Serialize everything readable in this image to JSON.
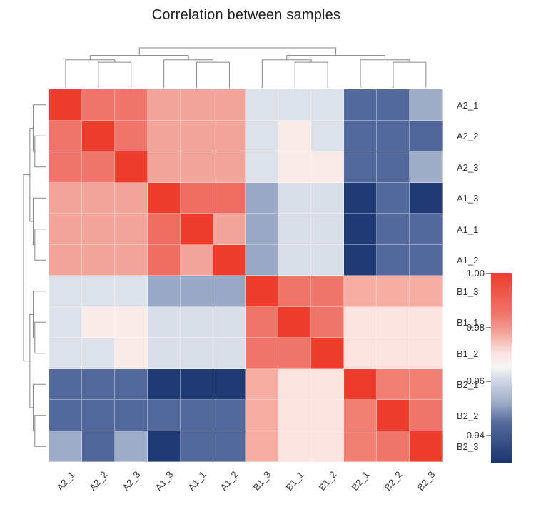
{
  "chart_data": {
    "type": "heatmap",
    "title": "Correlation between samples",
    "row_labels": [
      "A2_1",
      "A2_2",
      "A2_3",
      "A1_3",
      "A1_1",
      "A1_2",
      "B1_3",
      "B1_1",
      "B1_2",
      "B2_1",
      "B2_2",
      "B2_3"
    ],
    "col_labels": [
      "A2_1",
      "A2_2",
      "A2_3",
      "A1_3",
      "A1_1",
      "A1_2",
      "B1_3",
      "B1_1",
      "B1_2",
      "B2_1",
      "B2_2",
      "B2_3"
    ],
    "matrix": [
      [
        1.0,
        0.985,
        0.985,
        0.978,
        0.978,
        0.978,
        0.962,
        0.962,
        0.962,
        0.9445,
        0.9445,
        0.9525
      ],
      [
        0.985,
        1.0,
        0.985,
        0.978,
        0.978,
        0.978,
        0.962,
        0.9685,
        0.962,
        0.9445,
        0.9445,
        0.9435
      ],
      [
        0.985,
        0.985,
        1.0,
        0.978,
        0.978,
        0.978,
        0.962,
        0.9685,
        0.9685,
        0.9445,
        0.9445,
        0.9525
      ],
      [
        0.978,
        0.978,
        0.978,
        1.0,
        0.987,
        0.987,
        0.952,
        0.9615,
        0.9615,
        0.9315,
        0.9445,
        0.9315
      ],
      [
        0.978,
        0.978,
        0.978,
        0.987,
        1.0,
        0.978,
        0.952,
        0.9615,
        0.9615,
        0.9315,
        0.9445,
        0.9445
      ],
      [
        0.978,
        0.978,
        0.978,
        0.987,
        0.978,
        1.0,
        0.952,
        0.9615,
        0.9615,
        0.9315,
        0.9445,
        0.9445
      ],
      [
        0.962,
        0.962,
        0.962,
        0.952,
        0.952,
        0.952,
        1.0,
        0.985,
        0.985,
        0.977,
        0.977,
        0.977
      ],
      [
        0.962,
        0.9685,
        0.9685,
        0.9615,
        0.9615,
        0.9615,
        0.985,
        1.0,
        0.985,
        0.9705,
        0.9705,
        0.9705
      ],
      [
        0.962,
        0.962,
        0.9685,
        0.9615,
        0.9615,
        0.9615,
        0.985,
        0.985,
        1.0,
        0.9705,
        0.9705,
        0.9705
      ],
      [
        0.9445,
        0.9445,
        0.9445,
        0.9315,
        0.9315,
        0.9315,
        0.977,
        0.9705,
        0.9705,
        1.0,
        0.9835,
        0.9835
      ],
      [
        0.9445,
        0.9445,
        0.9445,
        0.9445,
        0.9445,
        0.9445,
        0.977,
        0.9705,
        0.9705,
        0.9835,
        1.0,
        0.985
      ],
      [
        0.9525,
        0.9435,
        0.9525,
        0.9315,
        0.9445,
        0.9445,
        0.977,
        0.9705,
        0.9705,
        0.9835,
        0.985,
        1.0
      ]
    ],
    "colorbar": {
      "tick_labels": [
        "1.00",
        "0.98",
        "0.96",
        "0.94"
      ],
      "tick_values": [
        1.0,
        0.98,
        0.96,
        0.94
      ],
      "domain": [
        0.93,
        1.0
      ],
      "orientation": "vertical",
      "position": "right"
    },
    "colormap_stops": [
      [
        0.93,
        "#1a356f"
      ],
      [
        0.9445,
        "#54699b"
      ],
      [
        0.9525,
        "#9fadc8"
      ],
      [
        0.962,
        "#dce1ea"
      ],
      [
        0.9655,
        "#f8f6f4"
      ],
      [
        0.9705,
        "#fbe3e0"
      ],
      [
        0.978,
        "#f4a59b"
      ],
      [
        0.985,
        "#f0756a"
      ],
      [
        1.0,
        "#ee3c2d"
      ]
    ],
    "dendrogram": {
      "h": 1.0,
      "c": [
        {
          "h": 0.81,
          "c": [
            {
              "h": 0.7,
              "c": [
                {
                  "l": 0
                },
                {
                  "h": 0.64,
                  "c": [
                    {
                      "l": 1
                    },
                    {
                      "l": 2
                    }
                  ]
                }
              ]
            },
            {
              "h": 0.7,
              "c": [
                {
                  "l": 3
                },
                {
                  "h": 0.64,
                  "c": [
                    {
                      "l": 4
                    },
                    {
                      "l": 5
                    }
                  ]
                }
              ]
            }
          ]
        },
        {
          "h": 0.81,
          "c": [
            {
              "h": 0.7,
              "c": [
                {
                  "l": 6
                },
                {
                  "h": 0.64,
                  "c": [
                    {
                      "l": 7
                    },
                    {
                      "l": 8
                    }
                  ]
                }
              ]
            },
            {
              "h": 0.7,
              "c": [
                {
                  "l": 9
                },
                {
                  "h": 0.64,
                  "c": [
                    {
                      "l": 10
                    },
                    {
                      "l": 11
                    }
                  ]
                }
              ]
            }
          ]
        }
      ]
    },
    "dendrogram_color": "#878787",
    "grid": true,
    "legend_position": "right"
  }
}
